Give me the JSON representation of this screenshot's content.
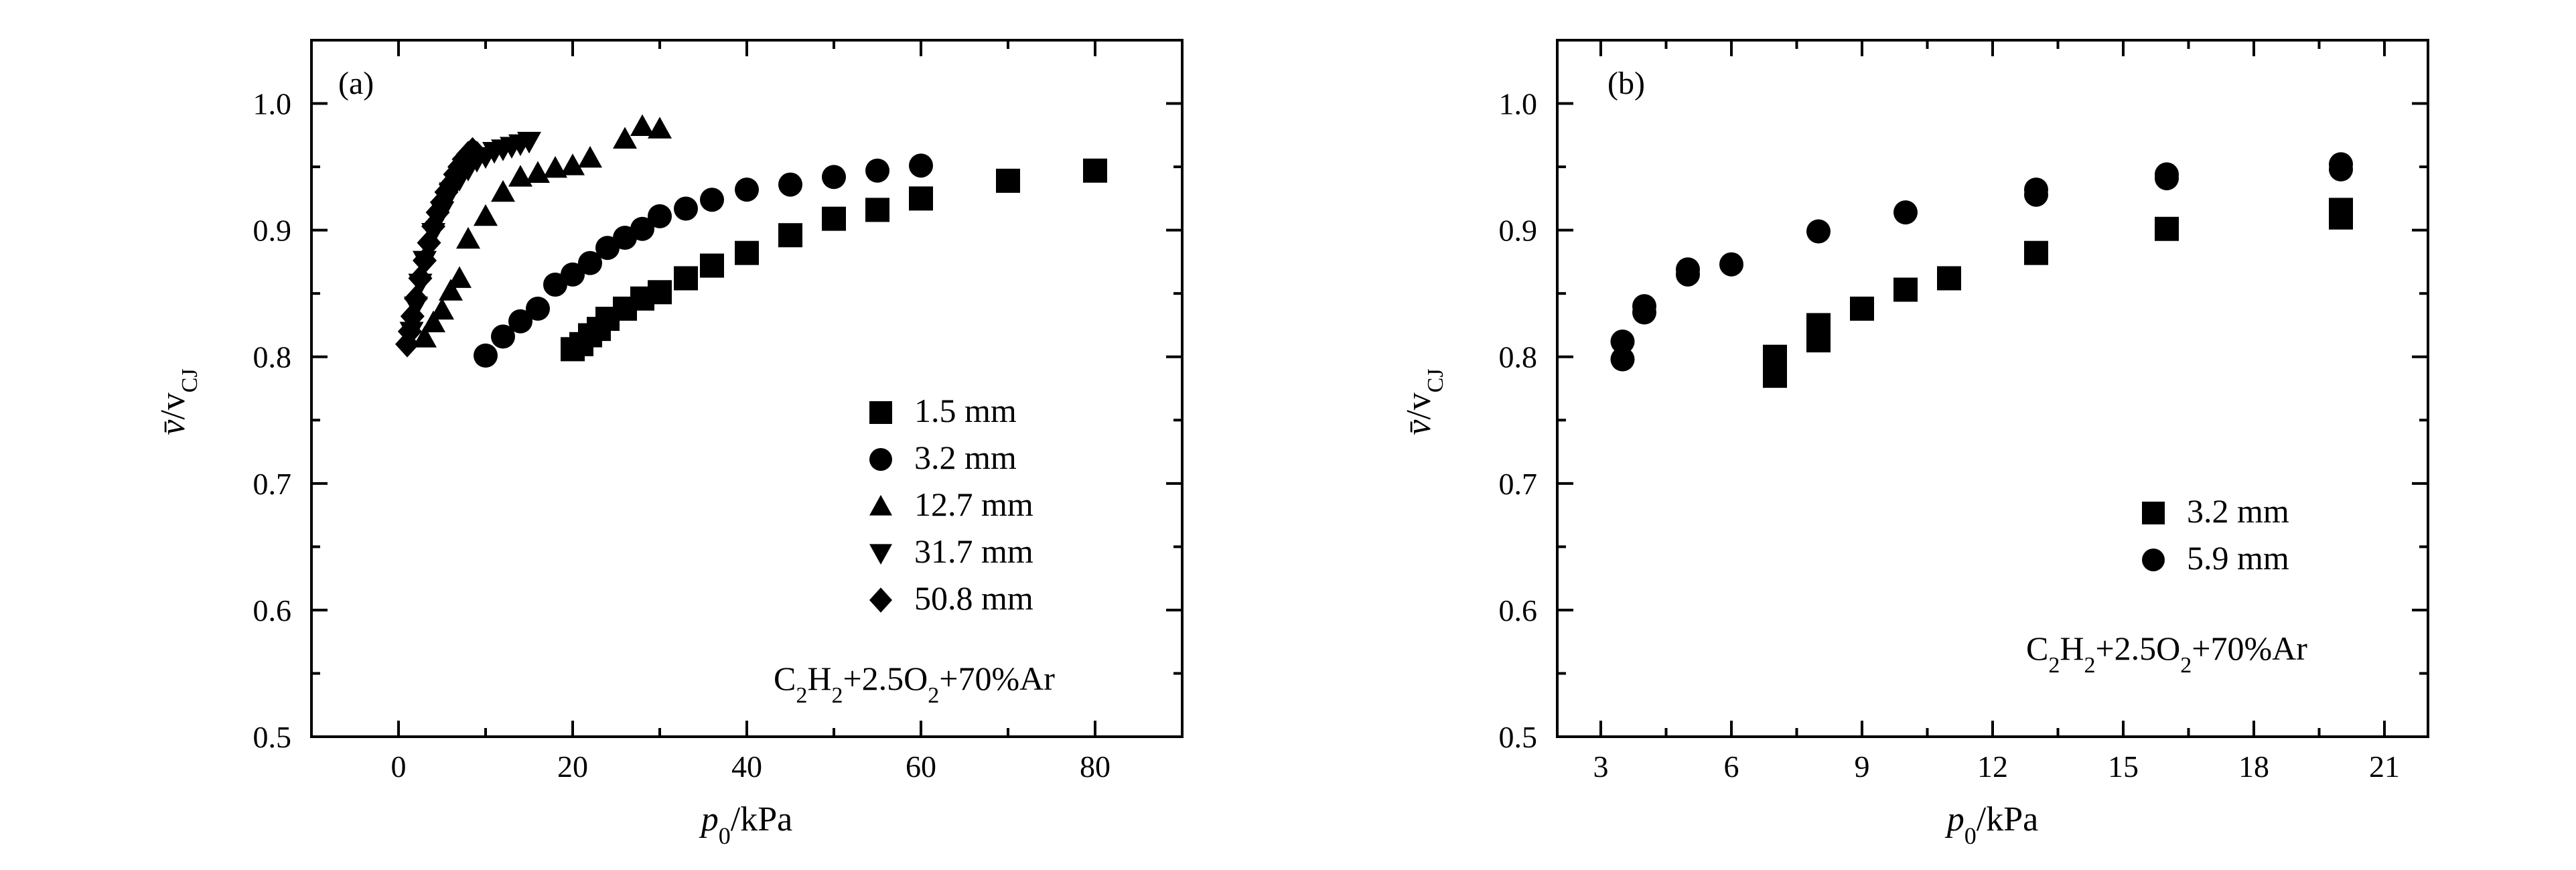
{
  "chart_data": [
    {
      "panel_label": "(a)",
      "type": "scatter",
      "xlabel": "p0/kPa",
      "ylabel": "v̄/vCJ",
      "xlim": [
        -10,
        90
      ],
      "ylim": [
        0.5,
        1.05
      ],
      "xticks": [
        0,
        20,
        40,
        60,
        80
      ],
      "yticks": [
        0.5,
        0.6,
        0.7,
        0.8,
        0.9,
        1.0
      ],
      "grid": false,
      "legend_position": "lower-right",
      "annotation": "C2H2+2.5O2+70%Ar",
      "series": [
        {
          "name": "1.5 mm",
          "marker": "square",
          "x": [
            20,
            21,
            22,
            23,
            24,
            26,
            28,
            30,
            33,
            36,
            40,
            45,
            50,
            55,
            60,
            70,
            80
          ],
          "y": [
            0.806,
            0.81,
            0.817,
            0.822,
            0.83,
            0.838,
            0.846,
            0.851,
            0.862,
            0.872,
            0.882,
            0.896,
            0.909,
            0.916,
            0.925,
            0.939,
            0.947
          ]
        },
        {
          "name": "3.2 mm",
          "marker": "circle",
          "x": [
            10,
            12,
            14,
            16,
            18,
            20,
            22,
            24,
            26,
            28,
            30,
            33,
            36,
            40,
            45,
            50,
            55,
            60
          ],
          "y": [
            0.801,
            0.816,
            0.828,
            0.838,
            0.857,
            0.865,
            0.874,
            0.886,
            0.894,
            0.901,
            0.911,
            0.917,
            0.924,
            0.932,
            0.936,
            0.942,
            0.947,
            0.951
          ]
        },
        {
          "name": "12.7 mm",
          "marker": "triangle-up",
          "x": [
            3,
            4,
            5,
            6,
            7,
            8,
            10,
            12,
            14,
            16,
            18,
            20,
            22,
            26,
            28,
            30
          ],
          "y": [
            0.815,
            0.827,
            0.837,
            0.852,
            0.862,
            0.893,
            0.911,
            0.93,
            0.942,
            0.945,
            0.949,
            0.951,
            0.957,
            0.972,
            0.982,
            0.98
          ]
        },
        {
          "name": "31.7 mm",
          "marker": "triangle-down",
          "x": [
            1.5,
            2,
            2.5,
            3,
            4,
            5,
            6,
            7,
            8,
            9,
            10,
            11,
            12,
            13,
            14,
            15
          ],
          "y": [
            0.82,
            0.84,
            0.858,
            0.876,
            0.898,
            0.915,
            0.93,
            0.94,
            0.948,
            0.955,
            0.958,
            0.962,
            0.964,
            0.966,
            0.968,
            0.97
          ]
        },
        {
          "name": "50.8 mm",
          "marker": "diamond",
          "x": [
            1,
            1.3,
            1.6,
            2,
            2.5,
            3,
            3.5,
            4,
            4.5,
            5,
            5.5,
            6,
            6.5,
            7,
            7.5,
            8,
            8.5,
            9
          ],
          "y": [
            0.81,
            0.82,
            0.832,
            0.846,
            0.862,
            0.876,
            0.89,
            0.903,
            0.914,
            0.922,
            0.93,
            0.936,
            0.944,
            0.95,
            0.956,
            0.96,
            0.963,
            0.96
          ]
        }
      ]
    },
    {
      "panel_label": "(b)",
      "type": "scatter",
      "xlabel": "p0/kPa",
      "ylabel": "v̄/vCJ",
      "xlim": [
        2,
        22
      ],
      "ylim": [
        0.5,
        1.05
      ],
      "xticks": [
        3,
        6,
        9,
        12,
        15,
        18,
        21
      ],
      "yticks": [
        0.5,
        0.6,
        0.7,
        0.8,
        0.9,
        1.0
      ],
      "grid": false,
      "legend_position": "lower-right",
      "annotation": "C2H2+2.5O2+70%Ar",
      "series": [
        {
          "name": "3.2 mm",
          "marker": "square",
          "x": [
            7,
            7,
            8,
            8,
            9,
            10,
            11,
            13,
            16,
            20,
            20
          ],
          "y": [
            0.785,
            0.8,
            0.813,
            0.825,
            0.838,
            0.853,
            0.862,
            0.882,
            0.901,
            0.91,
            0.916
          ]
        },
        {
          "name": "5.9 mm",
          "marker": "circle",
          "x": [
            3.5,
            3.5,
            4,
            4,
            5,
            5,
            6,
            8,
            10,
            13,
            13,
            16,
            16,
            20,
            20
          ],
          "y": [
            0.798,
            0.812,
            0.835,
            0.84,
            0.865,
            0.869,
            0.873,
            0.899,
            0.914,
            0.928,
            0.932,
            0.941,
            0.944,
            0.948,
            0.952
          ]
        }
      ]
    }
  ],
  "legend_a": [
    "1.5 mm",
    "3.2 mm",
    "12.7 mm",
    "31.7 mm",
    "50.8 mm"
  ],
  "legend_b": [
    "3.2 mm",
    "5.9 mm"
  ]
}
